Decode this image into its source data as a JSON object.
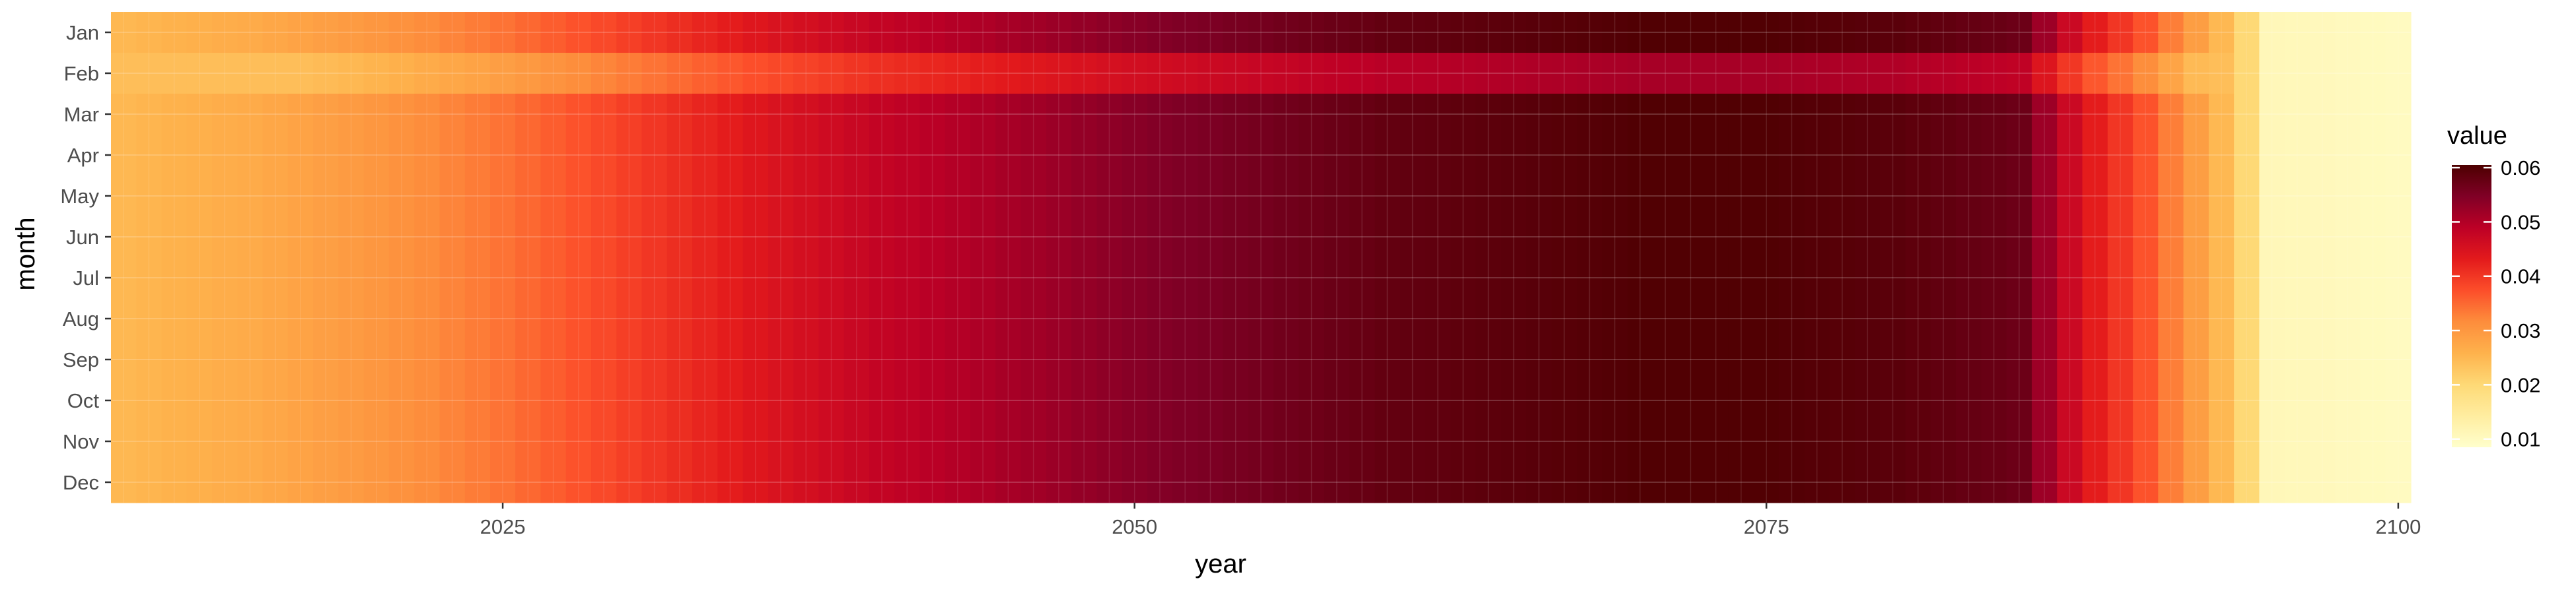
{
  "chart_data": {
    "type": "heatmap",
    "title": "",
    "xlabel": "year",
    "ylabel": "month",
    "x_start": 2010,
    "x_end": 2100,
    "xlim": [
      2009.5,
      2100.5
    ],
    "x_ticks": [
      2025,
      2050,
      2075,
      2100
    ],
    "x_tick_labels": [
      "2025",
      "2050",
      "2075",
      "2100"
    ],
    "months": [
      "Jan",
      "Feb",
      "Mar",
      "Apr",
      "May",
      "Jun",
      "Jul",
      "Aug",
      "Sep",
      "Oct",
      "Nov",
      "Dec"
    ],
    "legend": {
      "title": "value",
      "position": "right",
      "min": 0.0085,
      "max": 0.0605,
      "ticks": [
        0.01,
        0.02,
        0.03,
        0.04,
        0.05,
        0.06
      ],
      "tick_labels": [
        "0.01",
        "0.02",
        "0.03",
        "0.04",
        "0.05",
        "0.06"
      ]
    },
    "colorscale": [
      "#FFFFCC",
      "#FFEDA0",
      "#FED976",
      "#FEB24C",
      "#FD8D3C",
      "#FC4E2A",
      "#E31A1C",
      "#BD0026",
      "#800026",
      "#4D0000"
    ],
    "value_model": {
      "years": [
        2010,
        2015,
        2020,
        2025,
        2030,
        2035,
        2040,
        2045,
        2050,
        2055,
        2060,
        2065,
        2070,
        2075,
        2080,
        2085,
        2086,
        2087,
        2088,
        2089,
        2090,
        2091,
        2092,
        2093,
        2094,
        2095,
        2100
      ],
      "base_values": [
        0.025,
        0.027,
        0.03,
        0.034,
        0.039,
        0.044,
        0.048,
        0.051,
        0.054,
        0.056,
        0.058,
        0.059,
        0.06,
        0.06,
        0.059,
        0.057,
        0.052,
        0.047,
        0.043,
        0.04,
        0.037,
        0.033,
        0.029,
        0.025,
        0.02,
        0.011,
        0.01
      ],
      "month_factors": [
        1.0,
        0.85,
        1.0,
        1.0,
        1.0,
        1.0,
        1.0,
        1.0,
        1.0,
        1.0,
        1.0,
        1.0
      ],
      "feb_floor": 0.024
    }
  }
}
